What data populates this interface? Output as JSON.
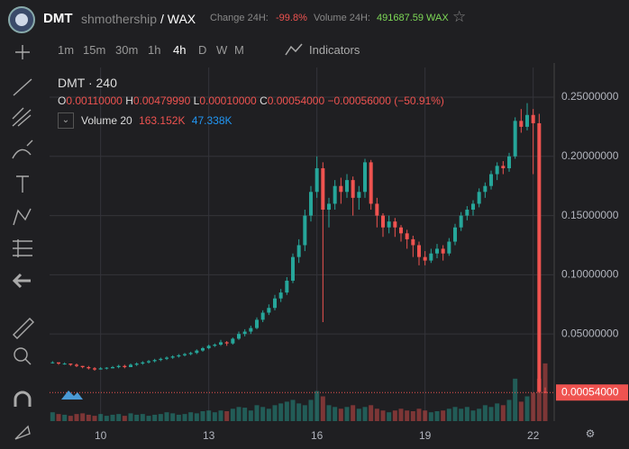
{
  "header": {
    "symbol": "DMT",
    "account": "shmothership",
    "pair": "/ WAX",
    "change_label": "Change 24H:",
    "change_value": "-99.8%",
    "volume_label": "Volume 24H:",
    "volume_value": "491687.59 WAX"
  },
  "toolbar": {
    "intervals": [
      "1m",
      "15m",
      "30m",
      "1h",
      "4h",
      "D",
      "W",
      "M"
    ],
    "indicators": "Indicators"
  },
  "legend": {
    "title": "DMT · 240",
    "o_label": "O",
    "o": "0.00110000",
    "h_label": "H",
    "h": "0.00479990",
    "l_label": "L",
    "l": "0.00010000",
    "c_label": "C",
    "c": "0.00054000",
    "change": "−0.00056000 (−50.91%)",
    "volume_name": "Volume 20",
    "volume_value": "163.152K",
    "volume_ma": "47.338K"
  },
  "chart_data": {
    "type": "candlestick",
    "up_color": "#26a69a",
    "down_color": "#ef5350",
    "grid": true,
    "ylim": [
      -0.0236,
      0.2751
    ],
    "yticks": [
      {
        "value": 0.05,
        "label": "0.05000000"
      },
      {
        "value": 0.1,
        "label": "0.10000000"
      },
      {
        "value": 0.15,
        "label": "0.15000000"
      },
      {
        "value": 0.2,
        "label": "0.20000000"
      },
      {
        "value": 0.25,
        "label": "0.25000000"
      }
    ],
    "xlim": [
      -0.5,
      83.5
    ],
    "xticks": [
      {
        "value": 8,
        "label": "10"
      },
      {
        "value": 26,
        "label": "13"
      },
      {
        "value": 44,
        "label": "16"
      },
      {
        "value": 62,
        "label": "19"
      },
      {
        "value": 80,
        "label": "22"
      }
    ],
    "last_price": {
      "value": 0.00054,
      "label": "0.00054000"
    },
    "volume_ylim": [
      0,
      1000
    ],
    "ohlc": [
      [
        0.026,
        0.027,
        0.025,
        0.026
      ],
      [
        0.026,
        0.026,
        0.024,
        0.025
      ],
      [
        0.025,
        0.026,
        0.024,
        0.025
      ],
      [
        0.025,
        0.025,
        0.023,
        0.024
      ],
      [
        0.024,
        0.025,
        0.022,
        0.023
      ],
      [
        0.023,
        0.023,
        0.021,
        0.022
      ],
      [
        0.022,
        0.023,
        0.02,
        0.021
      ],
      [
        0.021,
        0.022,
        0.019,
        0.02
      ],
      [
        0.02,
        0.022,
        0.02,
        0.021
      ],
      [
        0.021,
        0.022,
        0.02,
        0.0215
      ],
      [
        0.021,
        0.023,
        0.021,
        0.022
      ],
      [
        0.022,
        0.024,
        0.021,
        0.023
      ],
      [
        0.023,
        0.024,
        0.021,
        0.022
      ],
      [
        0.022,
        0.025,
        0.022,
        0.024
      ],
      [
        0.024,
        0.026,
        0.023,
        0.025
      ],
      [
        0.025,
        0.027,
        0.024,
        0.026
      ],
      [
        0.026,
        0.028,
        0.025,
        0.027
      ],
      [
        0.027,
        0.029,
        0.026,
        0.028
      ],
      [
        0.028,
        0.03,
        0.027,
        0.029
      ],
      [
        0.029,
        0.031,
        0.028,
        0.03
      ],
      [
        0.03,
        0.032,
        0.029,
        0.031
      ],
      [
        0.031,
        0.033,
        0.03,
        0.032
      ],
      [
        0.032,
        0.034,
        0.031,
        0.033
      ],
      [
        0.033,
        0.035,
        0.032,
        0.034
      ],
      [
        0.034,
        0.037,
        0.033,
        0.036
      ],
      [
        0.036,
        0.039,
        0.035,
        0.038
      ],
      [
        0.038,
        0.041,
        0.037,
        0.04
      ],
      [
        0.04,
        0.042,
        0.039,
        0.041
      ],
      [
        0.041,
        0.045,
        0.04,
        0.043
      ],
      [
        0.043,
        0.044,
        0.04,
        0.042
      ],
      [
        0.042,
        0.047,
        0.041,
        0.046
      ],
      [
        0.046,
        0.052,
        0.045,
        0.05
      ],
      [
        0.05,
        0.054,
        0.048,
        0.052
      ],
      [
        0.052,
        0.057,
        0.05,
        0.055
      ],
      [
        0.055,
        0.064,
        0.054,
        0.062
      ],
      [
        0.062,
        0.07,
        0.06,
        0.068
      ],
      [
        0.068,
        0.075,
        0.066,
        0.072
      ],
      [
        0.072,
        0.083,
        0.07,
        0.08
      ],
      [
        0.08,
        0.088,
        0.077,
        0.085
      ],
      [
        0.085,
        0.098,
        0.083,
        0.095
      ],
      [
        0.095,
        0.118,
        0.093,
        0.115
      ],
      [
        0.115,
        0.13,
        0.11,
        0.125
      ],
      [
        0.125,
        0.155,
        0.12,
        0.15
      ],
      [
        0.15,
        0.175,
        0.145,
        0.17
      ],
      [
        0.17,
        0.2,
        0.165,
        0.19
      ],
      [
        0.19,
        0.195,
        0.06,
        0.155
      ],
      [
        0.155,
        0.165,
        0.14,
        0.16
      ],
      [
        0.16,
        0.18,
        0.155,
        0.175
      ],
      [
        0.175,
        0.182,
        0.16,
        0.17
      ],
      [
        0.17,
        0.185,
        0.165,
        0.18
      ],
      [
        0.18,
        0.183,
        0.15,
        0.165
      ],
      [
        0.165,
        0.175,
        0.155,
        0.17
      ],
      [
        0.17,
        0.198,
        0.165,
        0.195
      ],
      [
        0.195,
        0.197,
        0.155,
        0.16
      ],
      [
        0.16,
        0.165,
        0.14,
        0.15
      ],
      [
        0.15,
        0.152,
        0.132,
        0.14
      ],
      [
        0.14,
        0.15,
        0.135,
        0.145
      ],
      [
        0.145,
        0.148,
        0.132,
        0.14
      ],
      [
        0.14,
        0.142,
        0.128,
        0.135
      ],
      [
        0.135,
        0.138,
        0.122,
        0.13
      ],
      [
        0.13,
        0.133,
        0.115,
        0.125
      ],
      [
        0.125,
        0.128,
        0.108,
        0.115
      ],
      [
        0.115,
        0.12,
        0.108,
        0.112
      ],
      [
        0.112,
        0.122,
        0.11,
        0.118
      ],
      [
        0.118,
        0.126,
        0.114,
        0.122
      ],
      [
        0.122,
        0.125,
        0.112,
        0.118
      ],
      [
        0.118,
        0.131,
        0.116,
        0.128
      ],
      [
        0.128,
        0.143,
        0.125,
        0.14
      ],
      [
        0.14,
        0.153,
        0.137,
        0.15
      ],
      [
        0.15,
        0.158,
        0.146,
        0.155
      ],
      [
        0.155,
        0.163,
        0.15,
        0.16
      ],
      [
        0.16,
        0.173,
        0.157,
        0.17
      ],
      [
        0.17,
        0.178,
        0.165,
        0.175
      ],
      [
        0.175,
        0.188,
        0.172,
        0.185
      ],
      [
        0.185,
        0.195,
        0.18,
        0.192
      ],
      [
        0.192,
        0.196,
        0.185,
        0.19
      ],
      [
        0.19,
        0.203,
        0.187,
        0.2
      ],
      [
        0.2,
        0.233,
        0.198,
        0.23
      ],
      [
        0.23,
        0.24,
        0.22,
        0.225
      ],
      [
        0.225,
        0.245,
        0.222,
        0.235
      ],
      [
        0.235,
        0.24,
        0.185,
        0.228
      ],
      [
        0.228,
        0.236,
        0.0005,
        0.0011
      ],
      [
        0.0011,
        0.0048,
        0.0001,
        0.00054
      ]
    ],
    "volumes": [
      25,
      20,
      18,
      15,
      20,
      22,
      18,
      15,
      20,
      15,
      18,
      20,
      15,
      22,
      18,
      20,
      15,
      18,
      20,
      25,
      22,
      18,
      20,
      25,
      22,
      28,
      30,
      25,
      30,
      28,
      35,
      40,
      38,
      30,
      45,
      40,
      35,
      45,
      50,
      55,
      60,
      50,
      45,
      60,
      85,
      70,
      45,
      40,
      35,
      40,
      45,
      35,
      40,
      45,
      35,
      30,
      25,
      30,
      35,
      30,
      28,
      35,
      30,
      25,
      28,
      30,
      35,
      40,
      35,
      40,
      30,
      35,
      45,
      40,
      50,
      45,
      60,
      120,
      55,
      70,
      80,
      120,
      163.152
    ]
  }
}
